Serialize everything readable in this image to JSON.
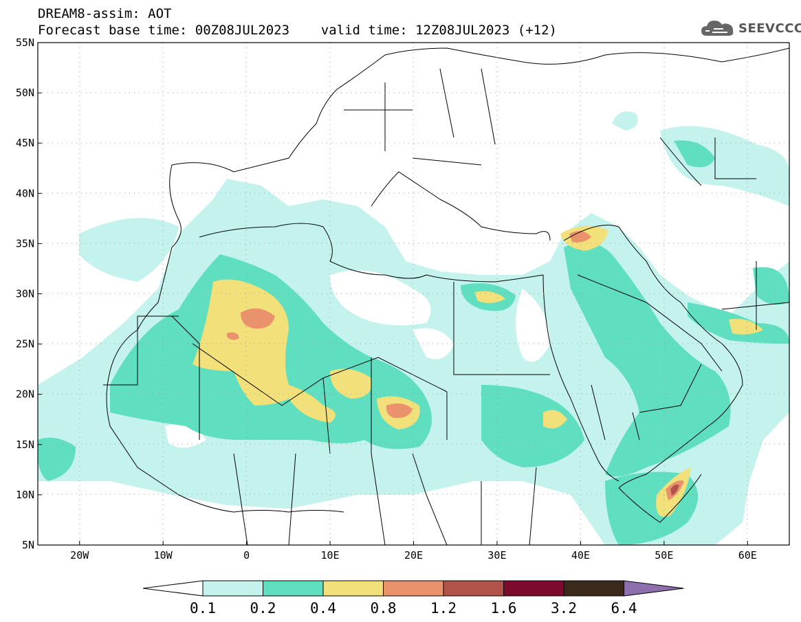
{
  "header": {
    "line1": "DREAM8-assim: AOT",
    "line2": "Forecast base time: 00Z08JUL2023    valid time: 12Z08JUL2023 (+12)"
  },
  "logo": {
    "text": "SEEVCCC",
    "icon": "cloud-icon",
    "color": "#555555"
  },
  "map": {
    "extent": {
      "lon": [
        -25,
        65
      ],
      "lat": [
        5,
        55
      ]
    },
    "lat_labels": [
      "5N",
      "10N",
      "15N",
      "20N",
      "25N",
      "30N",
      "35N",
      "40N",
      "45N",
      "50N",
      "55N"
    ],
    "lon_labels": [
      "20W",
      "10W",
      "0",
      "10E",
      "20E",
      "30E",
      "40E",
      "50E",
      "60E"
    ],
    "grid": "dotted"
  },
  "colorbar": {
    "thresholds": [
      "0.1",
      "0.2",
      "0.4",
      "0.8",
      "1.2",
      "1.6",
      "3.2",
      "6.4"
    ],
    "colors": [
      "#c4f2ec",
      "#5fdfbf",
      "#f2e17a",
      "#e9926b",
      "#b1534b",
      "#7c0a2c",
      "#3a2a1c",
      "#8e6fae"
    ],
    "low_color": "#ffffff"
  }
}
